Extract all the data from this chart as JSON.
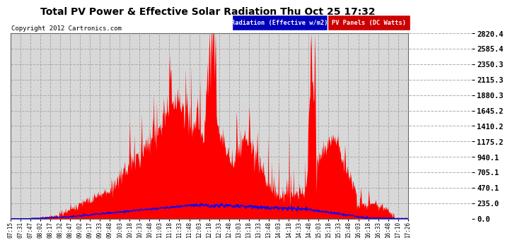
{
  "title": "Total PV Power & Effective Solar Radiation Thu Oct 25 17:32",
  "copyright": "Copyright 2012 Cartronics.com",
  "legend_blue": "Radiation (Effective w/m2)",
  "legend_red": "PV Panels (DC Watts)",
  "bg_color": "#ffffff",
  "plot_bg_color": "#d8d8d8",
  "grid_color": "#aaaaaa",
  "title_color": "#000000",
  "yticks": [
    0.0,
    235.0,
    470.1,
    705.1,
    940.1,
    1175.2,
    1410.2,
    1645.2,
    1880.3,
    2115.3,
    2350.3,
    2585.4,
    2820.4
  ],
  "ymax": 2820.4,
  "xtick_labels": [
    "07:15",
    "07:31",
    "07:47",
    "08:02",
    "08:17",
    "08:32",
    "08:47",
    "09:02",
    "09:17",
    "09:33",
    "09:48",
    "10:03",
    "10:18",
    "10:33",
    "10:48",
    "11:03",
    "11:18",
    "11:33",
    "11:48",
    "12:03",
    "12:18",
    "12:33",
    "12:48",
    "13:03",
    "13:18",
    "13:33",
    "13:48",
    "14:03",
    "14:18",
    "14:33",
    "14:48",
    "15:03",
    "15:18",
    "15:33",
    "15:48",
    "16:03",
    "16:18",
    "16:33",
    "16:48",
    "17:10",
    "17:26"
  ],
  "red_color": "#ff0000",
  "blue_color": "#0000ff",
  "legend_bg_blue": "#0000bb",
  "legend_bg_red": "#cc0000"
}
